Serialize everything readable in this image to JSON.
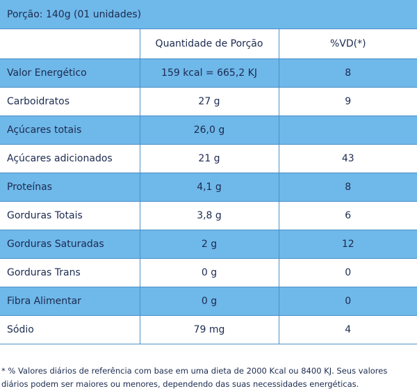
{
  "portion_label": "Porção: 140g (01 unidades)",
  "header": {
    "col1": "",
    "col2": "Quantidade de Porção",
    "col3": "%VD(*)"
  },
  "rows": [
    {
      "nutrient": "Valor Energético",
      "amount": "159 kcal = 665,2 KJ",
      "dv": "8"
    },
    {
      "nutrient": "Carboidratos",
      "amount": "27 g",
      "dv": "9"
    },
    {
      "nutrient": "Açúcares totais",
      "amount": "26,0 g",
      "dv": ""
    },
    {
      "nutrient": "Açúcares adicionados",
      "amount": "21 g",
      "dv": "43"
    },
    {
      "nutrient": "Proteínas",
      "amount": "4,1 g",
      "dv": "8"
    },
    {
      "nutrient": "Gorduras Totais",
      "amount": "3,8 g",
      "dv": "6"
    },
    {
      "nutrient": "Gorduras Saturadas",
      "amount": "2 g",
      "dv": "12"
    },
    {
      "nutrient": "Gorduras Trans",
      "amount": "0 g",
      "dv": "0"
    },
    {
      "nutrient": "Fibra Alimentar",
      "amount": "0 g",
      "dv": "0"
    },
    {
      "nutrient": "Sódio",
      "amount": "79 mg",
      "dv": "4"
    }
  ],
  "footnote": "* % Valores diários de referência com base em uma dieta de 2000 Kcal ou 8400 KJ. Seus valores diários podem ser maiores ou menores, dependendo das suas necessidades energéticas.",
  "colors": {
    "shaded_row": "#6fb8ea",
    "border": "#4a90c8",
    "text": "#1b2a4e"
  }
}
